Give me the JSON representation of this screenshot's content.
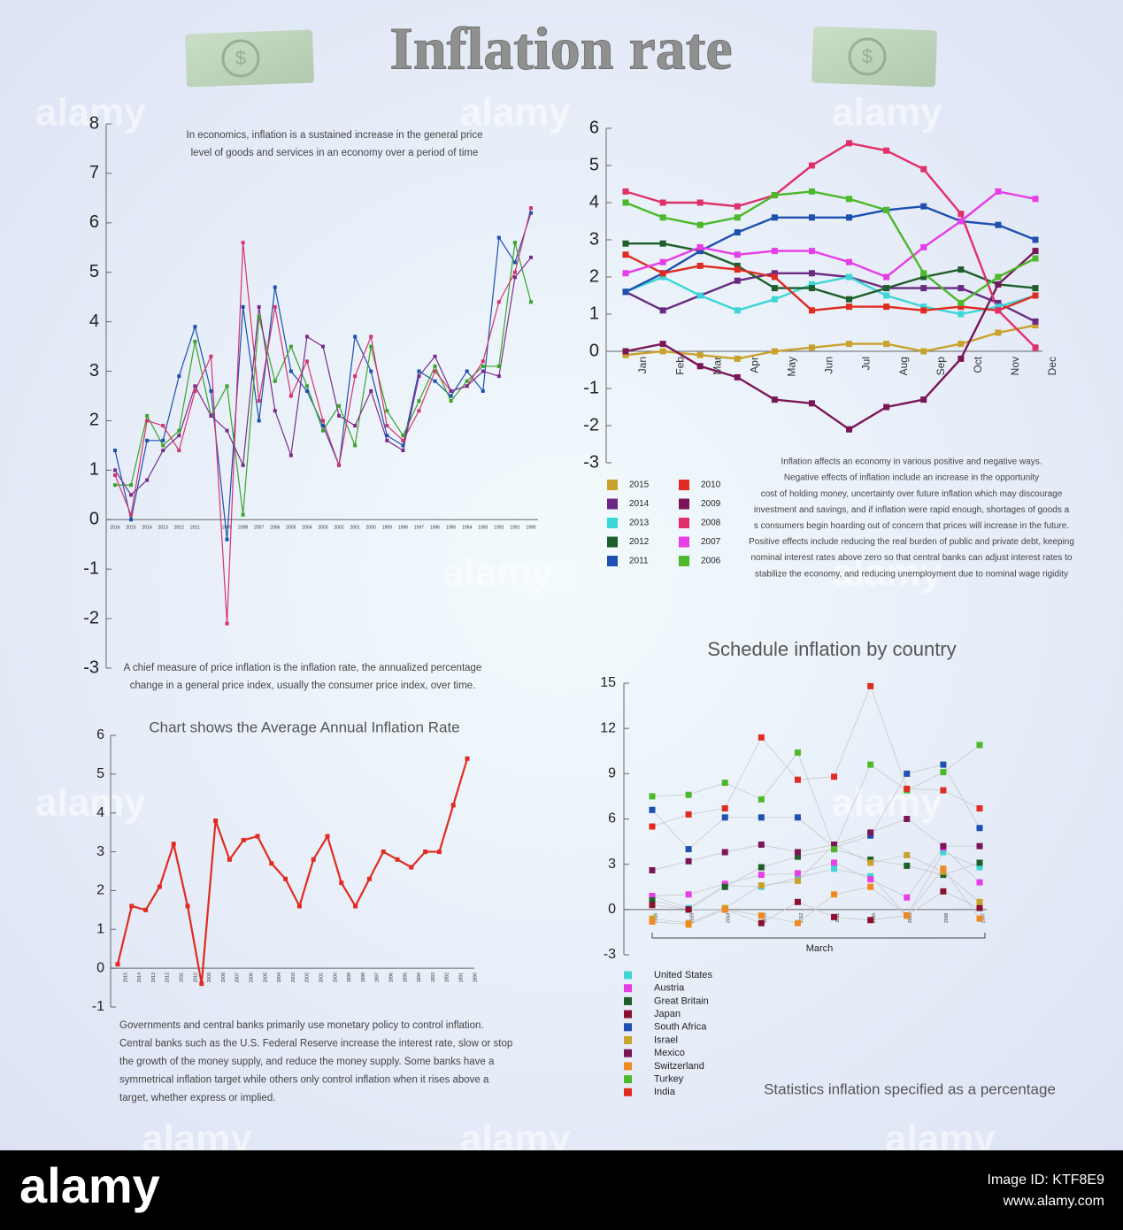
{
  "title": "Inflation rate",
  "watermark": "alamy",
  "footer": {
    "brand": "alamy",
    "image_id": "Image ID: KTF8E9",
    "url": "www.alamy.com"
  },
  "chart_data": [
    {
      "type": "line",
      "categories": [
        "2016",
        "2015",
        "2014",
        "2013",
        "2012",
        "2011",
        null,
        "2009",
        "2008",
        "2007",
        "2006",
        "2005",
        "2004",
        "2003",
        "2002",
        "2001",
        "2000",
        "1999",
        "1998",
        "1997",
        "1996",
        "1995",
        "1994",
        "1993",
        "1992",
        "1991",
        "1990"
      ],
      "series": [
        {
          "color": "#1f4fb0",
          "values": [
            1.4,
            0.0,
            1.6,
            1.6,
            2.9,
            3.9,
            2.6,
            -0.4,
            4.3,
            2.0,
            4.7,
            3.0,
            2.6,
            1.9,
            1.1,
            3.7,
            3.0,
            1.7,
            1.5,
            3.0,
            2.8,
            2.5,
            3.0,
            2.6,
            5.7,
            5.2,
            6.2
          ]
        },
        {
          "color": "#3aa32a",
          "values": [
            0.7,
            0.7,
            2.1,
            1.5,
            1.8,
            3.6,
            2.1,
            2.7,
            0.1,
            4.1,
            2.8,
            3.5,
            2.7,
            1.8,
            2.3,
            1.5,
            3.5,
            2.2,
            1.7,
            2.4,
            3.1,
            2.4,
            2.8,
            3.1,
            3.1,
            5.6,
            4.4
          ]
        },
        {
          "color": "#d6336c",
          "values": [
            0.9,
            0.1,
            2.0,
            1.9,
            1.4,
            2.6,
            3.3,
            -2.1,
            5.6,
            2.4,
            4.3,
            2.5,
            3.2,
            2.0,
            1.1,
            2.9,
            3.7,
            1.9,
            1.6,
            2.2,
            3.0,
            2.6,
            2.7,
            3.2,
            4.4,
            5.0,
            6.3
          ]
        },
        {
          "color": "#7b2d8b",
          "values": [
            1.0,
            0.5,
            0.8,
            1.4,
            1.7,
            2.7,
            2.1,
            1.8,
            1.1,
            4.3,
            2.2,
            1.3,
            3.7,
            3.5,
            2.1,
            1.9,
            2.6,
            1.6,
            1.4,
            2.9,
            3.3,
            2.6,
            2.7,
            3.0,
            2.9,
            4.9,
            5.3
          ]
        }
      ],
      "ylim": [
        -3,
        8
      ],
      "yticks": [
        -3,
        -2,
        -1,
        0,
        1,
        2,
        3,
        4,
        5,
        6,
        7,
        8
      ],
      "note_top": [
        "In economics, inflation is a sustained increase in the general price",
        "level of goods and services in an economy over a period of time"
      ],
      "note_bottom": [
        "A chief measure of price inflation is the inflation rate, the annualized percentage",
        "change in a general price index, usually the consumer price index, over time."
      ]
    },
    {
      "type": "line",
      "categories": [
        "Jan",
        "Feb",
        "Mar",
        "Apr",
        "May",
        "Jun",
        "Jul",
        "Aug",
        "Sep",
        "Oct",
        "Nov",
        "Dec"
      ],
      "series": [
        {
          "name": "2015",
          "color": "#c9a22c",
          "values": [
            -0.1,
            0.0,
            -0.1,
            -0.2,
            0.0,
            0.1,
            0.2,
            0.2,
            0.0,
            0.2,
            0.5,
            0.7
          ]
        },
        {
          "name": "2014",
          "color": "#6a2a82",
          "values": [
            1.6,
            1.1,
            1.5,
            1.9,
            2.1,
            2.1,
            2.0,
            1.7,
            1.7,
            1.7,
            1.3,
            0.8
          ]
        },
        {
          "name": "2013",
          "color": "#3dd6d6",
          "values": [
            1.6,
            2.0,
            1.5,
            1.1,
            1.4,
            1.8,
            2.0,
            1.5,
            1.2,
            1.0,
            1.2,
            1.5
          ]
        },
        {
          "name": "2012",
          "color": "#1e5e2a",
          "values": [
            2.9,
            2.9,
            2.7,
            2.3,
            1.7,
            1.7,
            1.4,
            1.7,
            2.0,
            2.2,
            1.8,
            1.7
          ]
        },
        {
          "name": "2011",
          "color": "#1f4fb0",
          "values": [
            1.6,
            2.1,
            2.7,
            3.2,
            3.6,
            3.6,
            3.6,
            3.8,
            3.9,
            3.5,
            3.4,
            3.0
          ]
        },
        {
          "name": "2010",
          "color": "#e02b20",
          "values": [
            2.6,
            2.1,
            2.3,
            2.2,
            2.0,
            1.1,
            1.2,
            1.2,
            1.1,
            1.2,
            1.1,
            1.5
          ]
        },
        {
          "name": "2009",
          "color": "#7a1658",
          "values": [
            0.0,
            0.2,
            -0.4,
            -0.7,
            -1.3,
            -1.4,
            -2.1,
            -1.5,
            -1.3,
            -0.2,
            1.8,
            2.7
          ]
        },
        {
          "name": "2008",
          "color": "#e0306a",
          "values": [
            4.3,
            4.0,
            4.0,
            3.9,
            4.2,
            5.0,
            5.6,
            5.4,
            4.9,
            3.7,
            1.1,
            0.1
          ]
        },
        {
          "name": "2007",
          "color": "#e63de6",
          "values": [
            2.1,
            2.4,
            2.8,
            2.6,
            2.7,
            2.7,
            2.4,
            2.0,
            2.8,
            3.5,
            4.3,
            4.1
          ]
        },
        {
          "name": "2006",
          "color": "#4cb82a",
          "values": [
            4.0,
            3.6,
            3.4,
            3.6,
            4.2,
            4.3,
            4.1,
            3.8,
            2.1,
            1.3,
            2.0,
            2.5
          ]
        }
      ],
      "ylim": [
        -3,
        6
      ],
      "yticks": [
        -3,
        -2,
        -1,
        0,
        1,
        2,
        3,
        4,
        5,
        6
      ],
      "legend": "bottom-left",
      "note": [
        "Inflation affects an economy in various positive and negative ways.",
        "Negative effects of inflation include an increase in the opportunity",
        "cost of holding money, uncertainty over future inflation which may discourage",
        "investment and savings, and if inflation were rapid enough, shortages of goods a",
        "s consumers begin  hoarding out of concern that prices will increase in the future.",
        "Positive effects include reducing the real burden of public and private debt, keeping",
        "nominal interest rates above  zero so that central banks can adjust interest rates to",
        "stabilize the economy, and reducing unemployment due to nominal wage rigidity"
      ]
    },
    {
      "type": "line",
      "title": "Chart shows the Average Annual Inflation Rate",
      "categories": [
        "2015",
        "2014",
        "2013",
        "2012",
        "2011",
        "2010",
        "2009",
        "2008",
        "2007",
        "2006",
        "2005",
        "2004",
        "2003",
        "2002",
        "2001",
        "2000",
        "1999",
        "1998",
        "1997",
        "1996",
        "1995",
        "1994",
        "1993",
        "1992",
        "1991",
        "1990"
      ],
      "values": [
        0.1,
        1.6,
        1.5,
        2.1,
        3.2,
        1.6,
        -0.4,
        3.8,
        2.8,
        3.3,
        3.4,
        2.7,
        2.3,
        1.6,
        2.8,
        3.4,
        2.2,
        1.6,
        2.3,
        3.0,
        2.8,
        2.6,
        3.0,
        3.0,
        4.2,
        5.4
      ],
      "color": "#e02b20",
      "ylim": [
        -1,
        6
      ],
      "yticks": [
        -1,
        0,
        1,
        2,
        3,
        4,
        5,
        6
      ],
      "note": [
        "Governments and central banks primarily use monetary policy to control inflation.",
        "Central banks such as the U.S. Federal Reserve increase the interest rate, slow or stop",
        "the growth  of the money supply, and reduce the money supply. Some banks have a",
        "symmetrical inflation target while others only control inflation when it rises above  a",
        "target, whether express or implied."
      ]
    },
    {
      "type": "line",
      "title": "Schedule inflation by country",
      "subtitle": "Statistics inflation specified as a percentage",
      "xlabel": "March",
      "categories": [
        "2016",
        "2015",
        "2014",
        "2013",
        "2012",
        "2011",
        "2010",
        "2009",
        "2008",
        "2007"
      ],
      "series": [
        {
          "name": "United States",
          "color": "#3dd6d6",
          "values": [
            0.9,
            0.1,
            1.6,
            1.5,
            2.1,
            2.7,
            2.2,
            -0.4,
            3.8,
            2.8
          ]
        },
        {
          "name": "Austria",
          "color": "#e63de6",
          "values": [
            0.9,
            1.0,
            1.7,
            2.3,
            2.4,
            3.1,
            2.0,
            0.8,
            4.1,
            1.8
          ]
        },
        {
          "name": "Great Britain",
          "color": "#1e5e2a",
          "values": [
            0.6,
            0.0,
            1.5,
            2.8,
            3.5,
            4.0,
            3.3,
            2.9,
            2.3,
            3.1
          ]
        },
        {
          "name": "Japan",
          "color": "#8b1030",
          "values": [
            0.3,
            0.0,
            0.0,
            -0.9,
            0.5,
            -0.5,
            -0.7,
            -0.4,
            1.2,
            0.1
          ]
        },
        {
          "name": "South Africa",
          "color": "#1f4fb0",
          "values": [
            6.6,
            4.0,
            6.1,
            6.1,
            6.1,
            4.1,
            4.9,
            9.0,
            9.6,
            5.4
          ]
        },
        {
          "name": "Israel",
          "color": "#c9a22c",
          "values": [
            -0.6,
            -0.9,
            0.1,
            1.6,
            1.9,
            4.3,
            3.1,
            3.6,
            2.5,
            0.5
          ]
        },
        {
          "name": "Mexico",
          "color": "#7a1658",
          "values": [
            2.6,
            3.2,
            3.8,
            4.3,
            3.8,
            4.3,
            5.1,
            6.0,
            4.2,
            4.2
          ]
        },
        {
          "name": "Switzerland",
          "color": "#f08a20",
          "values": [
            -0.8,
            -1.0,
            0.0,
            -0.4,
            -0.9,
            1.0,
            1.5,
            -0.4,
            2.7,
            -0.6
          ]
        },
        {
          "name": "Turkey",
          "color": "#4cb82a",
          "values": [
            7.5,
            7.6,
            8.4,
            7.3,
            10.4,
            4.0,
            9.6,
            7.9,
            9.1,
            10.9
          ]
        },
        {
          "name": "India",
          "color": "#e02b20",
          "values": [
            5.5,
            6.3,
            6.7,
            11.4,
            8.6,
            8.8,
            14.8,
            8.0,
            7.9,
            6.7
          ]
        }
      ],
      "ylim": [
        -3,
        15
      ],
      "yticks": [
        -3,
        0,
        3,
        6,
        9,
        12,
        15
      ],
      "legend": "bottom-left"
    }
  ]
}
